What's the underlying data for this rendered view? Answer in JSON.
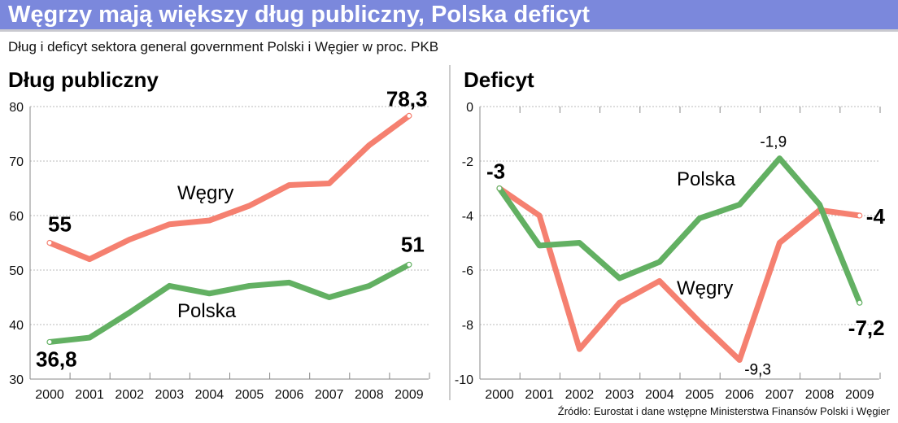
{
  "title": "Węgrzy mają większy dług publiczny, Polska deficyt",
  "subtitle": "Dług i deficyt sektora general government Polski i Węgier w proc. PKB",
  "source": "Źródło: Eurostat i dane wstępne Ministerstwa Finansów Polski i Węgier",
  "colors": {
    "title_bar": "#7b88dc",
    "hungary": "#f58070",
    "poland": "#62b062"
  },
  "chart_data": [
    {
      "type": "line",
      "title": "Dług publiczny",
      "categories": [
        "2000",
        "2001",
        "2002",
        "2003",
        "2004",
        "2005",
        "2006",
        "2007",
        "2008",
        "2009"
      ],
      "ylim": [
        30,
        80
      ],
      "yticks": [
        "30",
        "40",
        "50",
        "60",
        "70",
        "80"
      ],
      "grid": true,
      "series": [
        {
          "name": "Węgry",
          "values": [
            55.0,
            52.0,
            55.6,
            58.4,
            59.1,
            61.8,
            65.6,
            65.9,
            72.9,
            78.3
          ]
        },
        {
          "name": "Polska",
          "values": [
            36.8,
            37.6,
            42.2,
            47.1,
            45.7,
            47.1,
            47.7,
            45.0,
            47.1,
            51.0
          ]
        }
      ],
      "annotations": [
        "55",
        "78,3",
        "36,8",
        "51"
      ],
      "series_labels": [
        "Węgry",
        "Polska"
      ]
    },
    {
      "type": "line",
      "title": "Deficyt",
      "categories": [
        "2000",
        "2001",
        "2002",
        "2003",
        "2004",
        "2005",
        "2006",
        "2007",
        "2008",
        "2009"
      ],
      "ylim": [
        -10,
        0
      ],
      "yticks": [
        "0",
        "-2",
        "-4",
        "-6",
        "-8",
        "-10"
      ],
      "grid": true,
      "series": [
        {
          "name": "Węgry",
          "values": [
            -3.0,
            -4.0,
            -8.9,
            -7.2,
            -6.4,
            -7.9,
            -9.3,
            -5.0,
            -3.8,
            -4.0
          ]
        },
        {
          "name": "Polska",
          "values": [
            -3.0,
            -5.1,
            -5.0,
            -6.3,
            -5.7,
            -4.1,
            -3.6,
            -1.9,
            -3.6,
            -7.2
          ]
        }
      ],
      "annotations": [
        "-3",
        "-1,9",
        "-9,3",
        "-4",
        "-7,2"
      ],
      "series_labels": [
        "Polska",
        "Węgry"
      ]
    }
  ]
}
